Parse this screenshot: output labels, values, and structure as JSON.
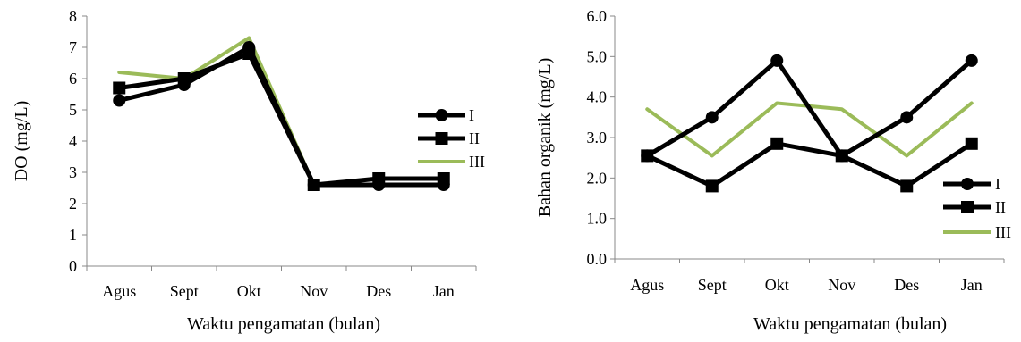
{
  "chart_data": [
    {
      "type": "line",
      "title": "",
      "xlabel": "Waktu pengamatan (bulan)",
      "ylabel": "DO (mg/L)",
      "categories": [
        "Agus",
        "Sept",
        "Okt",
        "Nov",
        "Des",
        "Jan"
      ],
      "ylim": [
        0,
        8
      ],
      "yticks": [
        "0",
        "1",
        "2",
        "3",
        "4",
        "5",
        "6",
        "7",
        "8"
      ],
      "grid": false,
      "legend": "right",
      "series": [
        {
          "name": "I",
          "marker": "circle",
          "color": "#000000",
          "values": [
            5.3,
            5.8,
            7.0,
            2.6,
            2.6,
            2.6
          ]
        },
        {
          "name": "II",
          "marker": "square",
          "color": "#000000",
          "values": [
            5.7,
            6.0,
            6.8,
            2.6,
            2.8,
            2.8
          ]
        },
        {
          "name": "III",
          "marker": "none",
          "color": "#9bbb59",
          "values": [
            6.2,
            6.0,
            7.3,
            2.6,
            2.6,
            2.6
          ]
        }
      ]
    },
    {
      "type": "line",
      "title": "",
      "xlabel": "Waktu pengamatan (bulan)",
      "ylabel": "Bahan organik (mg/L)",
      "categories": [
        "Agus",
        "Sept",
        "Okt",
        "Nov",
        "Des",
        "Jan"
      ],
      "ylim": [
        0,
        6
      ],
      "yticks": [
        "0.0",
        "1.0",
        "2.0",
        "3.0",
        "4.0",
        "5.0",
        "6.0"
      ],
      "grid": false,
      "legend": "bottom-right",
      "series": [
        {
          "name": "I",
          "marker": "circle",
          "color": "#000000",
          "values": [
            2.55,
            3.5,
            4.9,
            2.55,
            3.5,
            4.9
          ]
        },
        {
          "name": "II",
          "marker": "square",
          "color": "#000000",
          "values": [
            2.55,
            1.8,
            2.85,
            2.55,
            1.8,
            2.85
          ]
        },
        {
          "name": "III",
          "marker": "none",
          "color": "#9bbb59",
          "values": [
            3.7,
            2.55,
            3.85,
            3.7,
            2.55,
            3.85
          ]
        }
      ]
    }
  ]
}
